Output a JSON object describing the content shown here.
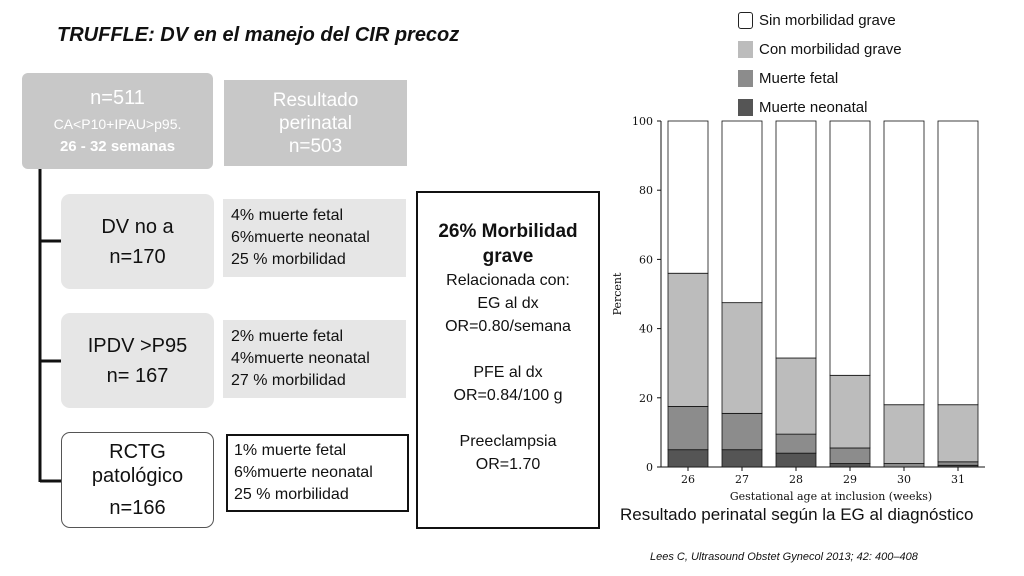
{
  "title": "TRUFFLE: DV en el manejo del CIR precoz",
  "main_box": {
    "line1": "n=511",
    "line2": "CA<P10+IPAU>p95.",
    "line3": "26 - 32 semanas"
  },
  "result_box": {
    "line1": "Resultado",
    "line2": "perinatal",
    "line3": "n=503"
  },
  "arms": [
    {
      "line1": "DV no a",
      "line2": "n=170",
      "stats": [
        "4% muerte fetal",
        "6%muerte neonatal",
        "25 % morbilidad"
      ]
    },
    {
      "line1": "IPDV >P95",
      "line2": "n= 167",
      "stats": [
        "2% muerte fetal",
        "4%muerte neonatal",
        "27 % morbilidad"
      ]
    },
    {
      "line1": "RCTG",
      "line2": "patológico",
      "line3": "n=166",
      "stats": [
        "1% muerte fetal",
        "6%muerte neonatal",
        "25 % morbilidad"
      ]
    }
  ],
  "summary": {
    "heading1": "26% Morbilidad",
    "heading2": "grave",
    "lines": [
      "Relacionada con:",
      "EG al dx",
      "OR=0.80/semana"
    ],
    "pfe": [
      "PFE al dx",
      "OR=0.84/100 g"
    ],
    "preeclampsia": [
      "Preeclampsia",
      "OR=1.70"
    ]
  },
  "legend": [
    {
      "label": "Sin morbilidad grave",
      "color": "#ffffff"
    },
    {
      "label": "Con morbilidad grave",
      "color": "#bcbcbc"
    },
    {
      "label": "Muerte fetal",
      "color": "#8c8c8c"
    },
    {
      "label": "Muerte neonatal",
      "color": "#555555"
    }
  ],
  "chart_data": {
    "type": "bar",
    "stacked": true,
    "categories": [
      "26",
      "27",
      "28",
      "29",
      "30",
      "31"
    ],
    "series": [
      {
        "name": "Muerte neonatal",
        "values": [
          5,
          5,
          4,
          1,
          0,
          0.5
        ],
        "color": "#555555"
      },
      {
        "name": "Muerte fetal",
        "values": [
          12.5,
          10.5,
          5.5,
          4.5,
          1,
          1
        ],
        "color": "#8c8c8c"
      },
      {
        "name": "Con morbilidad grave",
        "values": [
          38.5,
          32,
          22,
          21,
          17,
          16.5
        ],
        "color": "#bcbcbc"
      },
      {
        "name": "Sin morbilidad grave",
        "values": [
          44,
          52.5,
          68.5,
          73.5,
          82,
          82
        ],
        "color": "#ffffff"
      }
    ],
    "xlabel": "Gestational age at inclusion (weeks)",
    "ylabel": "Percent",
    "ylim": [
      0,
      100
    ],
    "yticks": [
      0,
      20,
      40,
      60,
      80,
      100
    ],
    "legend_position": "top"
  },
  "caption": "Resultado perinatal según la EG al diagnóstico",
  "reference": "Lees C, Ultrasound Obstet Gynecol 2013; 42: 400–408"
}
